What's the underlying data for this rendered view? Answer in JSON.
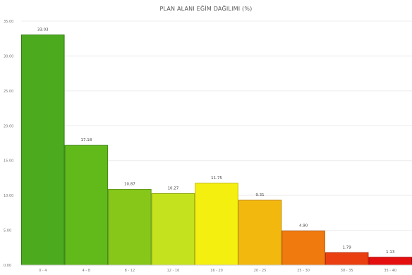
{
  "chart_data": {
    "type": "bar",
    "title": "PLAN ALANI EĞİM DAĞILIMI (%)",
    "categories": [
      "0 - 4",
      "4 - 8",
      "8 - 12",
      "12 - 16",
      "16 - 20",
      "20 - 25",
      "25 - 30",
      "30 - 35",
      "35 - 40"
    ],
    "values": [
      33.03,
      17.18,
      10.87,
      10.27,
      11.75,
      9.31,
      4.9,
      1.79,
      1.13
    ],
    "value_labels": [
      "33.03",
      "17.18",
      "10.87",
      "10.27",
      "11.75",
      "9.31",
      "4.90",
      "1.79",
      "1.13"
    ],
    "ylim": [
      0,
      35
    ],
    "yticks": [
      0,
      5,
      10,
      15,
      20,
      25,
      30,
      35
    ],
    "ytick_labels": [
      "0.00",
      "5.00",
      "10.00",
      "15.00",
      "20.00",
      "25.00",
      "30.00",
      "35.00"
    ],
    "xlabel": "",
    "ylabel": "",
    "grid": true,
    "legend": "none",
    "colors": [
      "#4caa1f",
      "#62b91a",
      "#86c71a",
      "#c4e21e",
      "#f5ef0f",
      "#f3b80d",
      "#f07a0e",
      "#ea3f10",
      "#e40f0f"
    ],
    "border_colors": [
      "#2f7a12",
      "#3f8a12",
      "#5c9512",
      "#93ad12",
      "#c5bc08",
      "#c48a08",
      "#bf5708",
      "#b92a08",
      "#b00808"
    ]
  }
}
